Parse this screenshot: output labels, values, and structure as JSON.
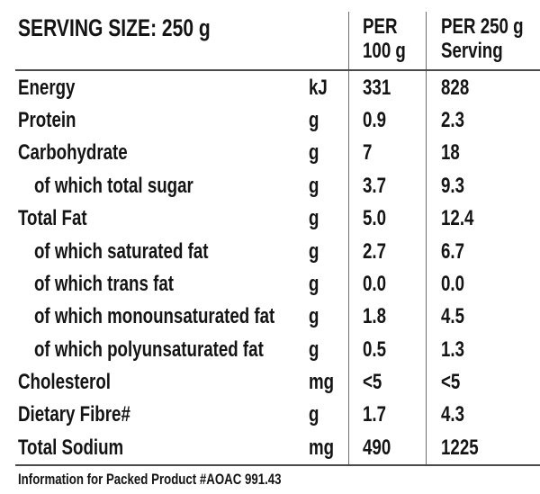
{
  "header": {
    "serving_size": "SERVING SIZE: 250 g",
    "per_100g_line1": "PER",
    "per_100g_line2": "100 g",
    "per_250g_line1": "PER 250 g",
    "per_250g_line2": "Serving"
  },
  "rows": [
    {
      "label": "Energy",
      "unit": "kJ",
      "per_100g": "331",
      "per_250g": "828"
    },
    {
      "label": "Protein",
      "unit": "g",
      "per_100g": "0.9",
      "per_250g": "2.3"
    },
    {
      "label": "Carbohydrate",
      "unit": "g",
      "per_100g": "7",
      "per_250g": "18"
    },
    {
      "label": "of which total sugar",
      "unit": "g",
      "per_100g": "3.7",
      "per_250g": "9.3"
    },
    {
      "label": "Total Fat",
      "unit": "g",
      "per_100g": "5.0",
      "per_250g": "12.4"
    },
    {
      "label": "of which saturated fat",
      "unit": "g",
      "per_100g": "2.7",
      "per_250g": "6.7"
    },
    {
      "label": "of which trans fat",
      "unit": "g",
      "per_100g": "0.0",
      "per_250g": "0.0"
    },
    {
      "label": "of which monounsaturated fat",
      "unit": "g",
      "per_100g": "1.8",
      "per_250g": "4.5"
    },
    {
      "label": "of which polyunsaturated fat",
      "unit": "g",
      "per_100g": "0.5",
      "per_250g": "1.3"
    },
    {
      "label": "Cholesterol",
      "unit": "mg",
      "per_100g": "<5",
      "per_250g": "<5"
    },
    {
      "label": "Dietary Fibre#",
      "unit": "g",
      "per_100g": "1.7",
      "per_250g": "4.3"
    },
    {
      "label": "Total Sodium",
      "unit": "mg",
      "per_100g": "490",
      "per_250g": "1225"
    }
  ],
  "footer": {
    "note": "Information for Packed Product #AOAC 991.43"
  },
  "colors": {
    "background": "#ffffff",
    "text": "#141414",
    "horizontal_rule": "#4a4a4a",
    "vertical_rule": "#6e6e6e"
  }
}
